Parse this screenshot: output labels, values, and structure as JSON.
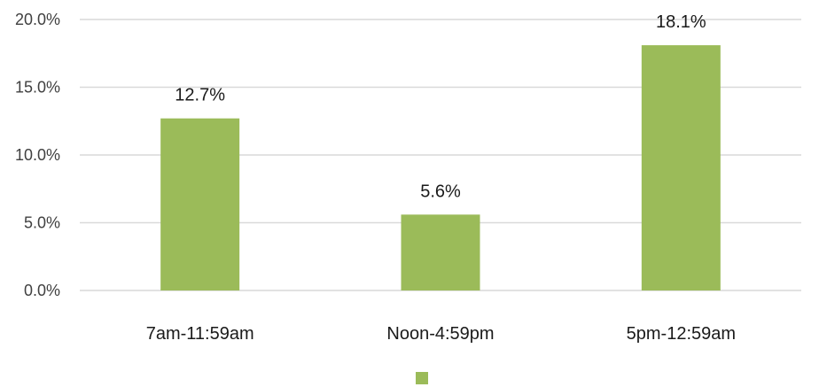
{
  "chart_data": {
    "type": "bar",
    "categories": [
      "7am-11:59am",
      "Noon-4:59pm",
      "5pm-12:59am"
    ],
    "values": [
      12.7,
      5.6,
      18.1
    ],
    "data_labels": [
      "12.7%",
      "5.6%",
      "18.1%"
    ],
    "yticks": [
      0,
      5,
      10,
      15,
      20
    ],
    "ytick_labels": [
      "0.0%",
      "5.0%",
      "10.0%",
      "15.0%",
      "20.0%"
    ],
    "ylim": [
      0,
      20
    ],
    "grid": true,
    "legend": "bottom",
    "bar_color": "#9bbb59"
  }
}
